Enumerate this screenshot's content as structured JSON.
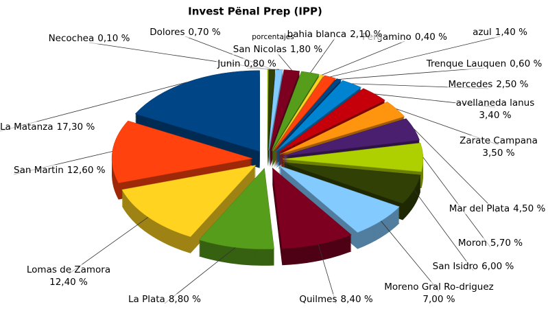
{
  "chart_data": {
    "type": "pie",
    "title": "Invest Pënal Prep (IPP)",
    "series_name": "porcentajes",
    "categories": [
      "La Matanza",
      "San Martin",
      "Lomas de Zamora",
      "La Plata",
      "Quilmes",
      "Moreno Gral Ro-driguez",
      "San Isidro",
      "Moron",
      "Mar del Plata",
      "Zarate Campana",
      "avellaneda lanus",
      "Mercedes",
      "Trenque Lauquen",
      "azul",
      "Pergamino",
      "bahia blanca",
      "San Nicolas",
      "Junin",
      "Dolores",
      "Necochea"
    ],
    "values": [
      17.3,
      12.6,
      12.4,
      8.8,
      8.4,
      7.0,
      6.0,
      5.7,
      4.5,
      3.5,
      3.4,
      2.5,
      0.6,
      1.4,
      0.4,
      2.1,
      1.8,
      0.8,
      0.7,
      0.1
    ],
    "value_labels": [
      "17,30 %",
      "12,60 %",
      "12,40 %",
      "8,80 %",
      "8,40 %",
      "7,00 %",
      "6,00 %",
      "5,70 %",
      "4,50 %",
      "3,50 %",
      "3,40 %",
      "2,50 %",
      "0,60 %",
      "1,40 %",
      "0,40 %",
      "2,10 %",
      "1,80 %",
      "0,80 %",
      "0,70 %",
      "0,10 %"
    ],
    "colors": [
      "#004586",
      "#ff420e",
      "#ffd320",
      "#579d1c",
      "#7e0021",
      "#83caff",
      "#314004",
      "#aecf00",
      "#4b1f6f",
      "#ff950e",
      "#c5000b",
      "#0084d1",
      "#004586",
      "#ff420e",
      "#ffd320",
      "#579d1c",
      "#7e0021",
      "#83caff",
      "#314004",
      "#aecf00"
    ]
  }
}
